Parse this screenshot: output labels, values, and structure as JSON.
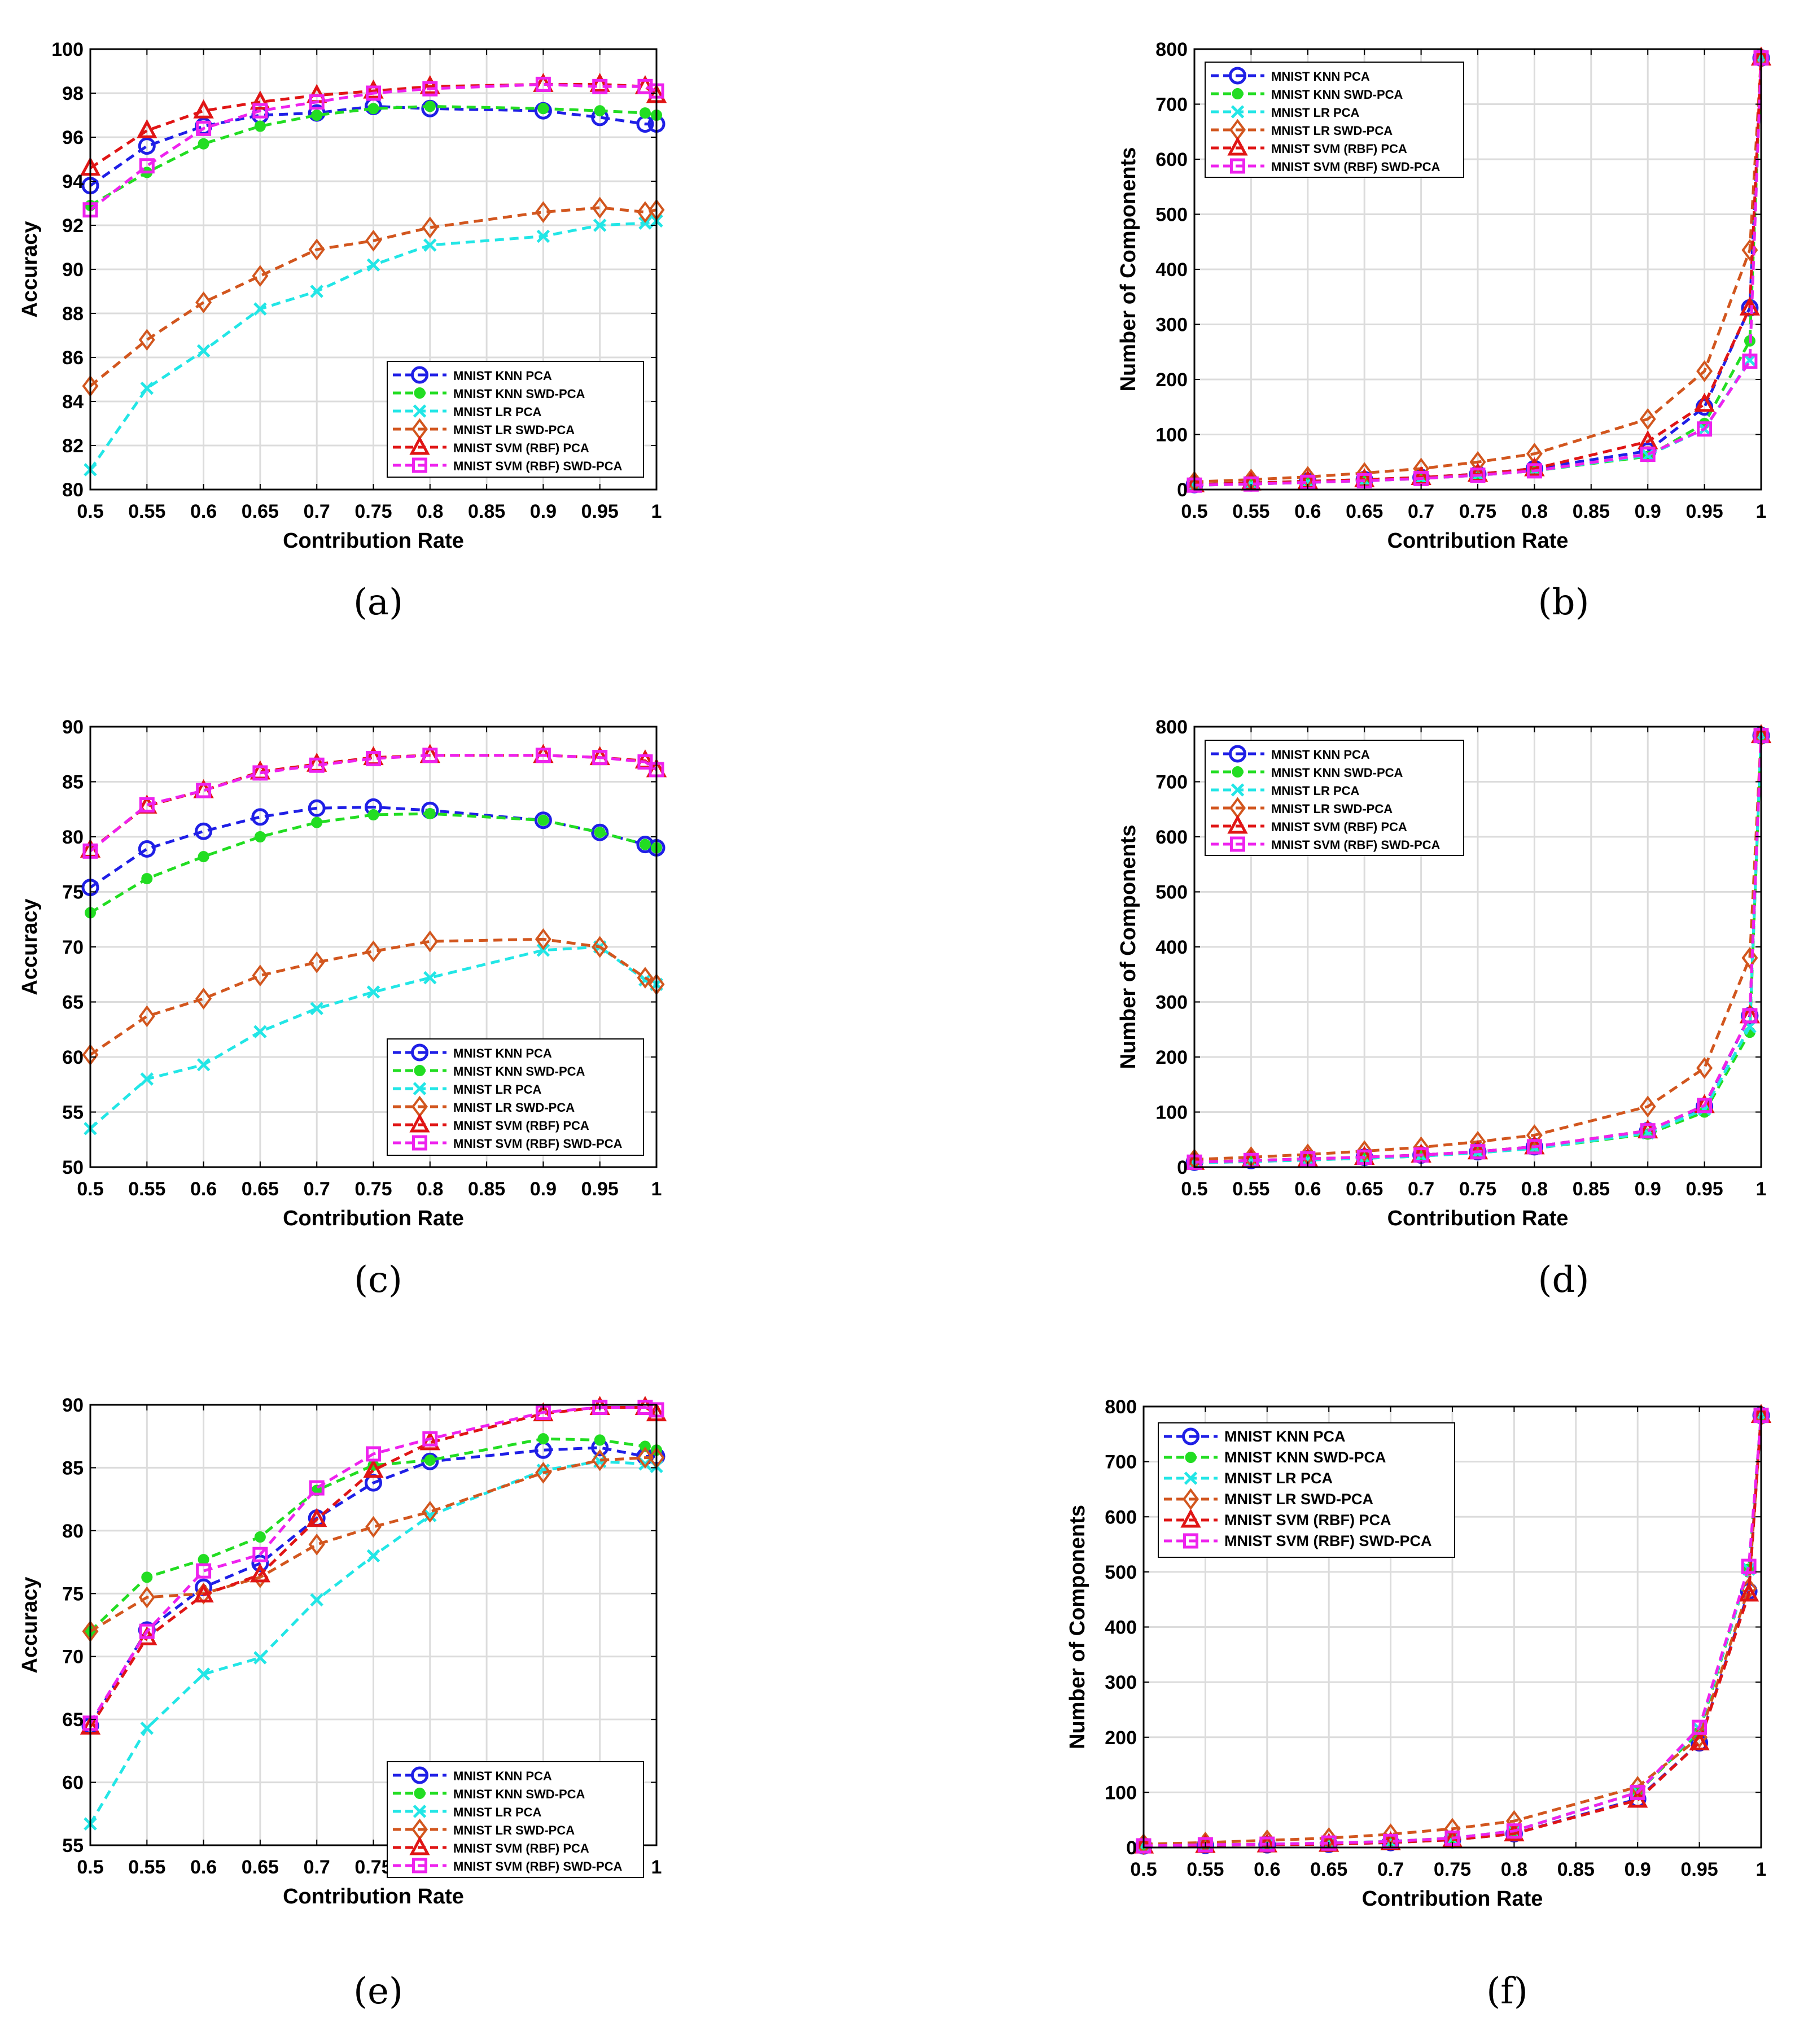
{
  "series_style": [
    {
      "color": "#1f1fe6",
      "marker": "circle"
    },
    {
      "color": "#22dd22",
      "marker": "dot"
    },
    {
      "color": "#22e6e6",
      "marker": "x"
    },
    {
      "color": "#d2561e",
      "marker": "diamond"
    },
    {
      "color": "#e01515",
      "marker": "triangle"
    },
    {
      "color": "#ee22ee",
      "marker": "square"
    }
  ],
  "chart_data": [
    {
      "type": "line",
      "id": "a",
      "caption": "(a)",
      "xlabel": "Contribution Rate",
      "ylabel": "Accuracy",
      "xlim": [
        0.5,
        1
      ],
      "ylim": [
        80,
        100
      ],
      "xticks": [
        0.5,
        0.55,
        0.6,
        0.65,
        0.7,
        0.75,
        0.8,
        0.85,
        0.9,
        0.95,
        1
      ],
      "xtick_labels": [
        "0.5",
        "0.55",
        "0.6",
        "0.65",
        "0.7",
        "0.75",
        "0.8",
        "0.85",
        "0.9",
        "0.95",
        "1"
      ],
      "yticks": [
        80,
        82,
        84,
        86,
        88,
        90,
        92,
        94,
        96,
        98,
        100
      ],
      "ytick_labels": [
        "80",
        "82",
        "84",
        "86",
        "88",
        "90",
        "92",
        "94",
        "96",
        "98",
        "100"
      ],
      "legend_position": "bottom-right",
      "x": [
        0.5,
        0.55,
        0.6,
        0.65,
        0.7,
        0.75,
        0.8,
        0.9,
        0.95,
        0.99,
        1.0
      ],
      "series": [
        {
          "name": "MNIST KNN PCA",
          "values": [
            93.8,
            95.6,
            96.5,
            97.0,
            97.1,
            97.4,
            97.3,
            97.2,
            96.9,
            96.6,
            96.6
          ]
        },
        {
          "name": "MNIST KNN SWD-PCA",
          "values": [
            92.9,
            94.4,
            95.7,
            96.5,
            97.0,
            97.3,
            97.4,
            97.3,
            97.2,
            97.1,
            97.0
          ]
        },
        {
          "name": "MNIST LR PCA",
          "values": [
            80.9,
            84.6,
            86.3,
            88.2,
            89.0,
            90.2,
            91.1,
            91.5,
            92.0,
            92.1,
            92.2
          ]
        },
        {
          "name": "MNIST LR SWD-PCA",
          "values": [
            84.7,
            86.8,
            88.5,
            89.7,
            90.9,
            91.3,
            91.9,
            92.6,
            92.8,
            92.6,
            92.7
          ]
        },
        {
          "name": "MNIST SVM (RBF) PCA",
          "values": [
            94.6,
            96.3,
            97.2,
            97.6,
            97.9,
            98.1,
            98.3,
            98.4,
            98.4,
            98.3,
            97.9
          ]
        },
        {
          "name": "MNIST SVM (RBF) SWD-PCA",
          "values": [
            92.7,
            94.7,
            96.4,
            97.2,
            97.6,
            98.0,
            98.2,
            98.4,
            98.3,
            98.3,
            98.1
          ]
        }
      ]
    },
    {
      "type": "line",
      "id": "b",
      "caption": "(b)",
      "xlabel": "Contribution Rate",
      "ylabel": "Number of Components",
      "xlim": [
        0.5,
        1
      ],
      "ylim": [
        0,
        800
      ],
      "xticks": [
        0.5,
        0.55,
        0.6,
        0.65,
        0.7,
        0.75,
        0.8,
        0.85,
        0.9,
        0.95,
        1
      ],
      "xtick_labels": [
        "0.5",
        "0.55",
        "0.6",
        "0.65",
        "0.7",
        "0.75",
        "0.8",
        "0.85",
        "0.9",
        "0.95",
        "1"
      ],
      "yticks": [
        0,
        100,
        200,
        300,
        400,
        500,
        600,
        700,
        800
      ],
      "ytick_labels": [
        "0",
        "100",
        "200",
        "300",
        "400",
        "500",
        "600",
        "700",
        "800"
      ],
      "legend_position": "top-left",
      "x": [
        0.5,
        0.55,
        0.6,
        0.65,
        0.7,
        0.75,
        0.8,
        0.9,
        0.95,
        0.99,
        1.0
      ],
      "series": [
        {
          "name": "MNIST KNN PCA",
          "values": [
            9,
            12,
            15,
            18,
            22,
            28,
            38,
            70,
            150,
            330,
            784
          ]
        },
        {
          "name": "MNIST KNN SWD-PCA",
          "values": [
            8,
            10,
            13,
            16,
            20,
            26,
            34,
            60,
            120,
            270,
            784
          ]
        },
        {
          "name": "MNIST LR PCA",
          "values": [
            8,
            10,
            13,
            16,
            20,
            26,
            34,
            62,
            110,
            235,
            784
          ]
        },
        {
          "name": "MNIST LR SWD-PCA",
          "values": [
            14,
            18,
            23,
            30,
            38,
            50,
            65,
            128,
            215,
            435,
            784
          ]
        },
        {
          "name": "MNIST SVM (RBF) PCA",
          "values": [
            9,
            12,
            15,
            18,
            22,
            28,
            38,
            87,
            155,
            330,
            784
          ]
        },
        {
          "name": "MNIST SVM (RBF) SWD-PCA",
          "values": [
            8,
            10,
            13,
            16,
            20,
            26,
            34,
            64,
            110,
            233,
            784
          ]
        }
      ]
    },
    {
      "type": "line",
      "id": "c",
      "caption": "(c)",
      "xlabel": "Contribution Rate",
      "ylabel": "Accuracy",
      "xlim": [
        0.5,
        1
      ],
      "ylim": [
        50,
        90
      ],
      "xticks": [
        0.5,
        0.55,
        0.6,
        0.65,
        0.7,
        0.75,
        0.8,
        0.85,
        0.9,
        0.95,
        1
      ],
      "xtick_labels": [
        "0.5",
        "0.55",
        "0.6",
        "0.65",
        "0.7",
        "0.75",
        "0.8",
        "0.85",
        "0.9",
        "0.95",
        "1"
      ],
      "yticks": [
        50,
        55,
        60,
        65,
        70,
        75,
        80,
        85,
        90
      ],
      "ytick_labels": [
        "50",
        "55",
        "60",
        "65",
        "70",
        "75",
        "80",
        "85",
        "90"
      ],
      "legend_position": "bottom-right",
      "x": [
        0.5,
        0.55,
        0.6,
        0.65,
        0.7,
        0.75,
        0.8,
        0.9,
        0.95,
        0.99,
        1.0
      ],
      "series": [
        {
          "name": "MNIST KNN PCA",
          "values": [
            75.4,
            78.9,
            80.5,
            81.8,
            82.6,
            82.7,
            82.4,
            81.5,
            80.4,
            79.3,
            79.0
          ]
        },
        {
          "name": "MNIST KNN SWD-PCA",
          "values": [
            73.1,
            76.2,
            78.2,
            80.0,
            81.3,
            82.0,
            82.1,
            81.5,
            80.4,
            79.3,
            79.0
          ]
        },
        {
          "name": "MNIST LR PCA",
          "values": [
            53.5,
            58.0,
            59.3,
            62.3,
            64.4,
            65.9,
            67.2,
            69.7,
            70.0,
            67.0,
            66.6
          ]
        },
        {
          "name": "MNIST LR SWD-PCA",
          "values": [
            60.2,
            63.7,
            65.3,
            67.4,
            68.6,
            69.6,
            70.5,
            70.7,
            70.0,
            67.2,
            66.6
          ]
        },
        {
          "name": "MNIST SVM (RBF) PCA",
          "values": [
            78.8,
            82.8,
            84.2,
            85.9,
            86.6,
            87.2,
            87.4,
            87.4,
            87.2,
            86.9,
            86.1
          ]
        },
        {
          "name": "MNIST SVM (RBF) SWD-PCA",
          "values": [
            78.7,
            82.9,
            84.2,
            85.8,
            86.5,
            87.1,
            87.4,
            87.4,
            87.2,
            86.8,
            86.1
          ]
        }
      ]
    },
    {
      "type": "line",
      "id": "d",
      "caption": "(d)",
      "xlabel": "Contribution Rate",
      "ylabel": "Number of Components",
      "xlim": [
        0.5,
        1
      ],
      "ylim": [
        0,
        800
      ],
      "xticks": [
        0.5,
        0.55,
        0.6,
        0.65,
        0.7,
        0.75,
        0.8,
        0.85,
        0.9,
        0.95,
        1
      ],
      "xtick_labels": [
        "0.5",
        "0.55",
        "0.6",
        "0.65",
        "0.7",
        "0.75",
        "0.8",
        "0.85",
        "0.9",
        "0.95",
        "1"
      ],
      "yticks": [
        0,
        100,
        200,
        300,
        400,
        500,
        600,
        700,
        800
      ],
      "ytick_labels": [
        "0",
        "100",
        "200",
        "300",
        "400",
        "500",
        "600",
        "700",
        "800"
      ],
      "legend_position": "top-left",
      "x": [
        0.5,
        0.55,
        0.6,
        0.65,
        0.7,
        0.75,
        0.8,
        0.9,
        0.95,
        0.99,
        1.0
      ],
      "series": [
        {
          "name": "MNIST KNN PCA",
          "values": [
            9,
            12,
            15,
            18,
            22,
            28,
            37,
            66,
            110,
            275,
            784
          ]
        },
        {
          "name": "MNIST KNN SWD-PCA",
          "values": [
            8,
            10,
            13,
            16,
            20,
            26,
            34,
            60,
            100,
            245,
            784
          ]
        },
        {
          "name": "MNIST LR PCA",
          "values": [
            8,
            10,
            13,
            16,
            20,
            26,
            34,
            62,
            105,
            255,
            784
          ]
        },
        {
          "name": "MNIST LR SWD-PCA",
          "values": [
            14,
            18,
            23,
            29,
            36,
            46,
            58,
            110,
            180,
            380,
            784
          ]
        },
        {
          "name": "MNIST SVM (RBF) PCA",
          "values": [
            9,
            12,
            15,
            18,
            22,
            28,
            37,
            66,
            112,
            275,
            784
          ]
        },
        {
          "name": "MNIST SVM (RBF) SWD-PCA",
          "values": [
            9,
            12,
            15,
            18,
            22,
            28,
            37,
            66,
            112,
            275,
            784
          ]
        }
      ]
    },
    {
      "type": "line",
      "id": "e",
      "caption": "(e)",
      "xlabel": "Contribution Rate",
      "ylabel": "Accuracy",
      "xlim": [
        0.5,
        1
      ],
      "ylim": [
        55,
        90
      ],
      "xticks": [
        0.5,
        0.55,
        0.6,
        0.65,
        0.7,
        0.75,
        0.8,
        0.85,
        0.9,
        0.95,
        1
      ],
      "xtick_labels": [
        "0.5",
        "0.55",
        "0.6",
        "0.65",
        "0.7",
        "0.75",
        "0.8",
        "0.85",
        "0.9",
        "0.95",
        "1"
      ],
      "yticks": [
        55,
        60,
        65,
        70,
        75,
        80,
        85,
        90
      ],
      "ytick_labels": [
        "55",
        "60",
        "65",
        "70",
        "75",
        "80",
        "85",
        "90"
      ],
      "legend_position": "bottom-right",
      "x": [
        0.5,
        0.55,
        0.6,
        0.65,
        0.7,
        0.75,
        0.8,
        0.9,
        0.95,
        0.99,
        1.0
      ],
      "series": [
        {
          "name": "MNIST KNN PCA",
          "values": [
            64.5,
            72.1,
            75.5,
            77.4,
            81.0,
            83.8,
            85.5,
            86.4,
            86.6,
            85.9,
            85.9
          ]
        },
        {
          "name": "MNIST KNN SWD-PCA",
          "values": [
            72.0,
            76.3,
            77.7,
            79.5,
            83.2,
            85.2,
            85.6,
            87.3,
            87.2,
            86.7,
            86.4
          ]
        },
        {
          "name": "MNIST LR PCA",
          "values": [
            56.7,
            64.3,
            68.6,
            69.9,
            74.5,
            78.0,
            81.2,
            84.8,
            85.5,
            85.3,
            85.1
          ]
        },
        {
          "name": "MNIST LR SWD-PCA",
          "values": [
            72.0,
            74.7,
            75.0,
            76.3,
            78.9,
            80.3,
            81.5,
            84.6,
            85.6,
            85.8,
            85.8
          ]
        },
        {
          "name": "MNIST SVM (RBF) PCA",
          "values": [
            64.4,
            71.5,
            74.9,
            76.5,
            80.9,
            84.8,
            87.0,
            89.3,
            89.8,
            89.8,
            89.3
          ]
        },
        {
          "name": "MNIST SVM (RBF) SWD-PCA",
          "values": [
            64.7,
            72.0,
            76.8,
            78.1,
            83.4,
            86.1,
            87.3,
            89.4,
            89.8,
            89.8,
            89.6
          ]
        }
      ]
    },
    {
      "type": "line",
      "id": "f",
      "caption": "(f)",
      "xlabel": "Contribution Rate",
      "ylabel": "Number of Components",
      "xlim": [
        0.5,
        1
      ],
      "ylim": [
        0,
        800
      ],
      "xticks": [
        0.5,
        0.55,
        0.6,
        0.65,
        0.7,
        0.75,
        0.8,
        0.85,
        0.9,
        0.95,
        1
      ],
      "xtick_labels": [
        "0.5",
        "0.55",
        "0.6",
        "0.65",
        "0.7",
        "0.75",
        "0.8",
        "0.85",
        "0.9",
        "0.95",
        "1"
      ],
      "yticks": [
        0,
        100,
        200,
        300,
        400,
        500,
        600,
        700,
        800
      ],
      "ytick_labels": [
        "0",
        "100",
        "200",
        "300",
        "400",
        "500",
        "600",
        "700",
        "800"
      ],
      "legend_position": "top-left",
      "x": [
        0.5,
        0.55,
        0.6,
        0.65,
        0.7,
        0.75,
        0.8,
        0.9,
        0.95,
        0.99,
        1.0
      ],
      "series": [
        {
          "name": "MNIST KNN PCA",
          "values": [
            3,
            4,
            5,
            6,
            9,
            14,
            25,
            88,
            190,
            465,
            784
          ]
        },
        {
          "name": "MNIST KNN SWD-PCA",
          "values": [
            3,
            5,
            6,
            8,
            11,
            17,
            30,
            100,
            210,
            505,
            784
          ]
        },
        {
          "name": "MNIST LR PCA",
          "values": [
            3,
            5,
            6,
            8,
            11,
            17,
            30,
            100,
            215,
            505,
            784
          ]
        },
        {
          "name": "MNIST LR SWD-PCA",
          "values": [
            6,
            9,
            13,
            17,
            24,
            34,
            48,
            110,
            200,
            470,
            784
          ]
        },
        {
          "name": "MNIST SVM (RBF) PCA",
          "values": [
            3,
            4,
            5,
            6,
            9,
            14,
            25,
            86,
            190,
            460,
            784
          ]
        },
        {
          "name": "MNIST SVM (RBF) SWD-PCA",
          "values": [
            3,
            5,
            6,
            8,
            11,
            17,
            30,
            100,
            218,
            510,
            784
          ]
        }
      ]
    }
  ]
}
